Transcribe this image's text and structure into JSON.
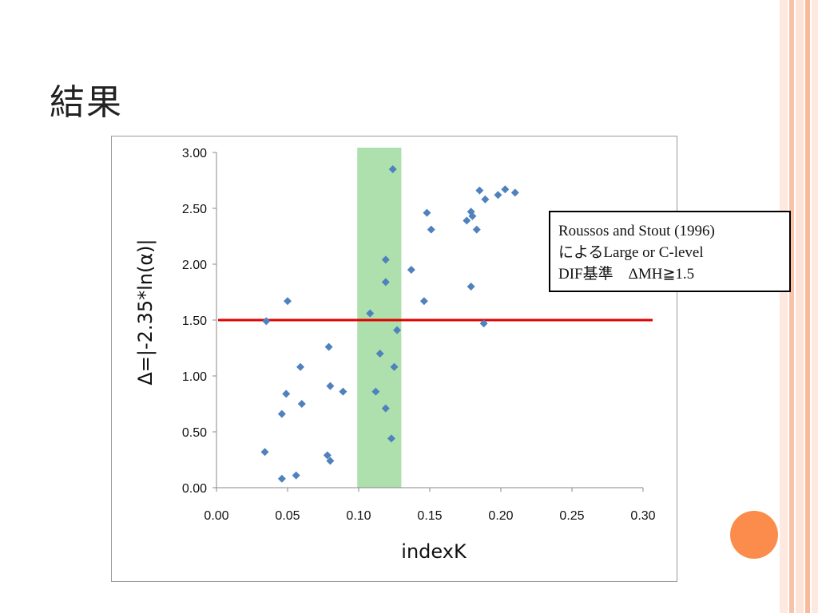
{
  "slide": {
    "title": "結果",
    "decor_colors": {
      "stripe_light": "#fde3d6",
      "stripe_mid": "#f9b99b",
      "circle": "#fb8c4c"
    }
  },
  "annotation": {
    "lines": [
      "Roussos and Stout (1996)",
      "によるLarge or C-level",
      "DIF基準　ΔMH≧1.5"
    ]
  },
  "chart_data": {
    "type": "scatter",
    "xlabel": "indexK",
    "ylabel": "Δ=|-2.35*ln(α)|",
    "xlim": [
      0,
      0.3
    ],
    "ylim": [
      0,
      3.0
    ],
    "x_ticks": [
      "0.00",
      "0.05",
      "0.10",
      "0.15",
      "0.20",
      "0.25",
      "0.30"
    ],
    "y_ticks": [
      "0.00",
      "0.50",
      "1.00",
      "1.50",
      "2.00",
      "2.50",
      "3.00"
    ],
    "grid": false,
    "marker_color": "#4f81bd",
    "threshold_line": {
      "y": 1.5,
      "color": "#e00000"
    },
    "highlight_band": {
      "x_min": 0.099,
      "x_max": 0.13,
      "color": "#92d592"
    },
    "points": [
      [
        0.034,
        0.32
      ],
      [
        0.035,
        1.49
      ],
      [
        0.046,
        0.08
      ],
      [
        0.046,
        0.66
      ],
      [
        0.049,
        0.84
      ],
      [
        0.05,
        1.67
      ],
      [
        0.056,
        0.11
      ],
      [
        0.059,
        1.08
      ],
      [
        0.06,
        0.75
      ],
      [
        0.078,
        0.29
      ],
      [
        0.079,
        1.26
      ],
      [
        0.08,
        0.24
      ],
      [
        0.08,
        0.91
      ],
      [
        0.089,
        0.86
      ],
      [
        0.108,
        1.56
      ],
      [
        0.112,
        0.86
      ],
      [
        0.115,
        1.2
      ],
      [
        0.119,
        1.84
      ],
      [
        0.119,
        2.04
      ],
      [
        0.119,
        0.71
      ],
      [
        0.123,
        0.44
      ],
      [
        0.124,
        2.85
      ],
      [
        0.125,
        1.08
      ],
      [
        0.127,
        1.41
      ],
      [
        0.137,
        1.95
      ],
      [
        0.146,
        1.67
      ],
      [
        0.148,
        2.46
      ],
      [
        0.151,
        2.31
      ],
      [
        0.176,
        2.39
      ],
      [
        0.179,
        2.47
      ],
      [
        0.179,
        1.8
      ],
      [
        0.18,
        2.43
      ],
      [
        0.183,
        2.31
      ],
      [
        0.185,
        2.66
      ],
      [
        0.188,
        1.47
      ],
      [
        0.189,
        2.58
      ],
      [
        0.198,
        2.62
      ],
      [
        0.203,
        2.67
      ],
      [
        0.21,
        2.64
      ]
    ]
  }
}
